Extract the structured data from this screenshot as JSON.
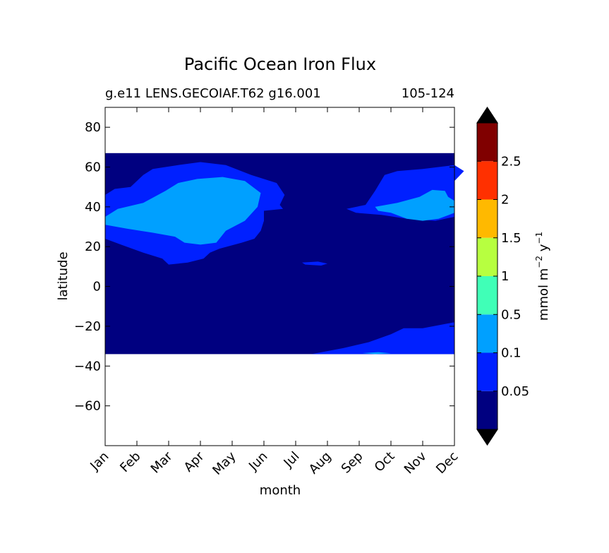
{
  "chart_data": {
    "type": "heatmap",
    "title": "Pacific Ocean Iron Flux",
    "subtitle_left": "g.e11 LENS.GECOIAF.T62 g16.001",
    "subtitle_right": "105-124",
    "xlabel": "month",
    "ylabel": "latitude",
    "x_categories": [
      "Jan",
      "Feb",
      "Mar",
      "Apr",
      "May",
      "Jun",
      "Jul",
      "Aug",
      "Sep",
      "Oct",
      "Nov",
      "Dec"
    ],
    "y_ticks": [
      80,
      60,
      40,
      20,
      0,
      -20,
      -40,
      -60
    ],
    "y_tick_labels": [
      "80",
      "60",
      "40",
      "20",
      "0",
      "−20",
      "−40",
      "−60"
    ],
    "ylim": [
      -80,
      90
    ],
    "data_lat_range": [
      -34,
      67
    ],
    "grid": false,
    "colorbar": {
      "label": "mmol m⁻² y⁻¹",
      "label_base": "mmol m",
      "label_exp1": "−2",
      "label_mid": " y",
      "label_exp2": "−1",
      "tick_labels": [
        "0.05",
        "0.1",
        "0.5",
        "1",
        "1.5",
        "2",
        "2.5"
      ],
      "bins": [
        {
          "range": "< 0.05",
          "color": "#000080"
        },
        {
          "range": "0.05-0.1",
          "color": "#0020ff"
        },
        {
          "range": "0.1-0.5",
          "color": "#00a0ff"
        },
        {
          "range": "0.5-1",
          "color": "#40ffb7"
        },
        {
          "range": "1-1.5",
          "color": "#b7ff40"
        },
        {
          "range": "1.5-2",
          "color": "#ffb900"
        },
        {
          "range": "2-2.5",
          "color": "#ff3000"
        },
        {
          "range": "> 2.5",
          "color": "#800000"
        }
      ],
      "extend_color": "#000000"
    },
    "contour_regions": [
      {
        "level": "0.05-0.1",
        "color": "#0020ff",
        "points": [
          [
            0,
            46
          ],
          [
            0.3,
            49
          ],
          [
            0.8,
            50
          ],
          [
            1.2,
            56
          ],
          [
            1.5,
            59
          ],
          [
            2.3,
            61
          ],
          [
            3.0,
            62.5
          ],
          [
            3.8,
            61
          ],
          [
            4.6,
            56
          ],
          [
            5.4,
            52
          ],
          [
            5.65,
            46
          ],
          [
            5.5,
            41
          ],
          [
            5.6,
            39
          ],
          [
            5.0,
            38
          ],
          [
            5.0,
            33
          ],
          [
            4.9,
            28
          ],
          [
            4.7,
            24
          ],
          [
            4.3,
            22
          ],
          [
            3.6,
            19
          ],
          [
            3.3,
            17
          ],
          [
            3.1,
            14
          ],
          [
            2.6,
            12
          ],
          [
            2.0,
            11
          ],
          [
            1.8,
            14
          ],
          [
            1.2,
            17
          ],
          [
            0.5,
            21
          ],
          [
            0,
            24
          ]
        ]
      },
      {
        "level": "0.05-0.1",
        "color": "#0020ff",
        "points": [
          [
            7.6,
            39
          ],
          [
            8.2,
            41
          ],
          [
            8.5,
            48
          ],
          [
            8.8,
            56
          ],
          [
            9.2,
            58
          ],
          [
            10.0,
            59
          ],
          [
            11.0,
            61
          ],
          [
            11.3,
            58
          ],
          [
            11.0,
            53
          ],
          [
            11.0,
            35
          ],
          [
            10.4,
            33
          ],
          [
            9.5,
            34
          ],
          [
            8.7,
            36
          ],
          [
            7.9,
            37
          ]
        ]
      },
      {
        "level": "0.05-0.1",
        "color": "#0020ff",
        "points": [
          [
            6.2,
            12
          ],
          [
            6.7,
            12.5
          ],
          [
            7.0,
            11.5
          ],
          [
            6.8,
            10.5
          ],
          [
            6.3,
            11
          ]
        ]
      },
      {
        "level": "0.05-0.1",
        "color": "#0020ff",
        "points": [
          [
            9.4,
            -21
          ],
          [
            10.0,
            -21
          ],
          [
            11.0,
            -18
          ],
          [
            11.0,
            -34
          ],
          [
            6.5,
            -34
          ],
          [
            7.5,
            -31
          ],
          [
            8.3,
            -28
          ],
          [
            9.0,
            -24
          ]
        ]
      },
      {
        "level": "0.1-0.5",
        "color": "#00a0ff",
        "points": [
          [
            0,
            35
          ],
          [
            0.4,
            39
          ],
          [
            1.2,
            42
          ],
          [
            1.9,
            48
          ],
          [
            2.3,
            52
          ],
          [
            2.9,
            54
          ],
          [
            3.7,
            55
          ],
          [
            4.4,
            53
          ],
          [
            4.9,
            47
          ],
          [
            4.8,
            40
          ],
          [
            4.4,
            33
          ],
          [
            3.8,
            28
          ],
          [
            3.6,
            24
          ],
          [
            3.5,
            22
          ],
          [
            3.0,
            21
          ],
          [
            2.5,
            22
          ],
          [
            2.2,
            25
          ],
          [
            1.5,
            27
          ],
          [
            0.7,
            29
          ],
          [
            0,
            31
          ]
        ]
      },
      {
        "level": "0.1-0.5",
        "color": "#00a0ff",
        "points": [
          [
            8.5,
            40
          ],
          [
            9.2,
            42
          ],
          [
            9.9,
            45
          ],
          [
            10.3,
            48.5
          ],
          [
            10.7,
            48
          ],
          [
            10.8,
            45
          ],
          [
            11.0,
            43
          ],
          [
            11.0,
            37
          ],
          [
            10.5,
            34
          ],
          [
            10.0,
            33
          ],
          [
            9.5,
            34
          ],
          [
            9.0,
            37
          ],
          [
            8.6,
            38
          ]
        ]
      },
      {
        "level": "0.1-0.5",
        "color": "#00a0ff",
        "points": [
          [
            8.1,
            -33.5
          ],
          [
            8.6,
            -33
          ],
          [
            9.0,
            -33.6
          ],
          [
            8.5,
            -34
          ]
        ]
      }
    ]
  }
}
